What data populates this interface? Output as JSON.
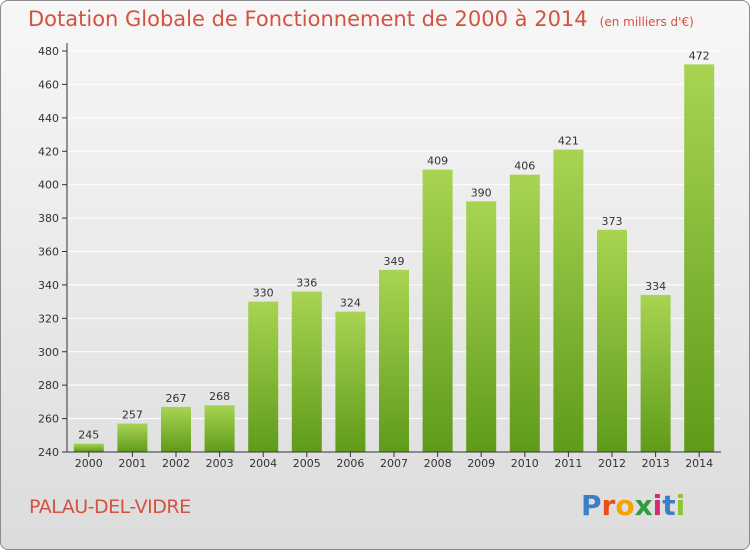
{
  "title": "Dotation Globale de Fonctionnement de 2000 à 2014",
  "unit_note": "(en milliers d'€)",
  "commune": "PALAU-DEL-VIDRE",
  "logo": {
    "text": "Proxiti",
    "colors": [
      "#3d7fc4",
      "#e84e1b",
      "#f3a200",
      "#2e9c3f",
      "#d62a6f",
      "#3d7fc4",
      "#8fc43a"
    ]
  },
  "colors": {
    "bar_light": "#a8d452",
    "bar_dark": "#5f9b1a",
    "title": "#d2533f",
    "grid": "#ffffff"
  },
  "chart_data": {
    "type": "bar",
    "title": "Dotation Globale de Fonctionnement de 2000 à 2014",
    "categories": [
      "2000",
      "2001",
      "2002",
      "2003",
      "2004",
      "2005",
      "2006",
      "2007",
      "2008",
      "2009",
      "2010",
      "2011",
      "2012",
      "2013",
      "2014"
    ],
    "values": [
      245,
      257,
      267,
      268,
      330,
      336,
      324,
      349,
      409,
      390,
      406,
      421,
      373,
      334,
      472
    ],
    "ylim": [
      240,
      480
    ],
    "yticks": [
      240,
      260,
      280,
      300,
      320,
      340,
      360,
      380,
      400,
      420,
      440,
      460,
      480
    ],
    "grid": true,
    "data_labels": true
  }
}
